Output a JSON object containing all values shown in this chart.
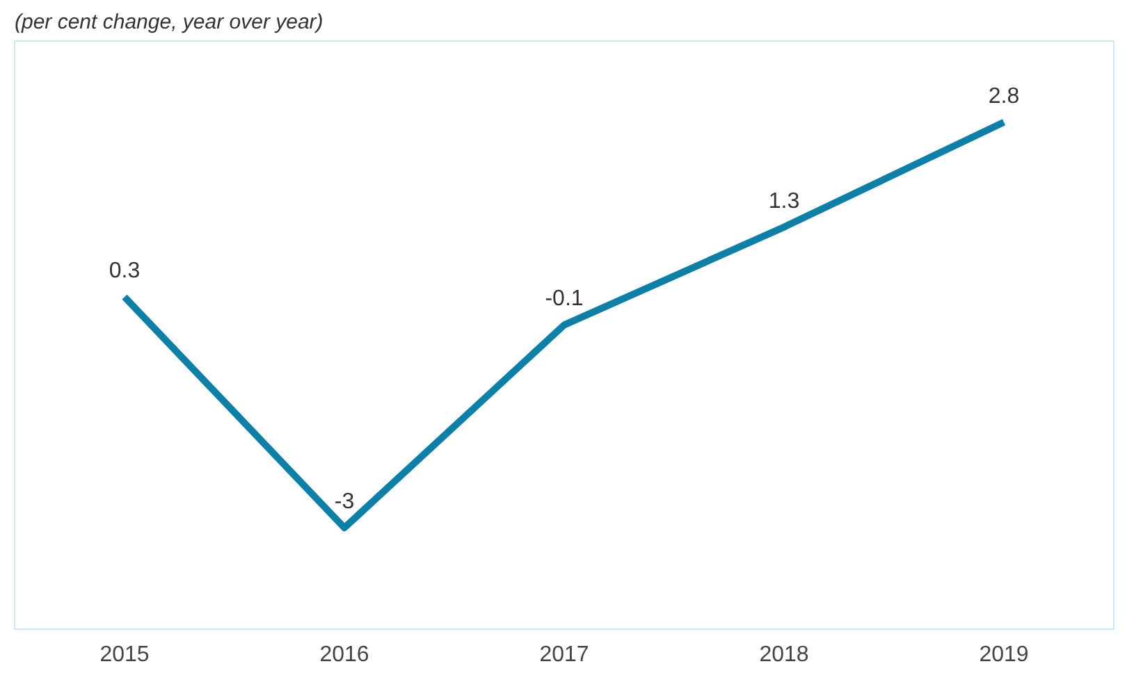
{
  "chart_data": {
    "type": "line",
    "subtitle": "(per cent change, year over year)",
    "categories": [
      "2015",
      "2016",
      "2017",
      "2018",
      "2019"
    ],
    "series": [
      {
        "color": "#0e7fa6",
        "values": [
          0.3,
          -3,
          -0.1,
          1.3,
          2.8
        ]
      }
    ],
    "data_labels": true,
    "grid": false,
    "tick_labels": "x",
    "marker": "none",
    "line_style": "solid"
  }
}
